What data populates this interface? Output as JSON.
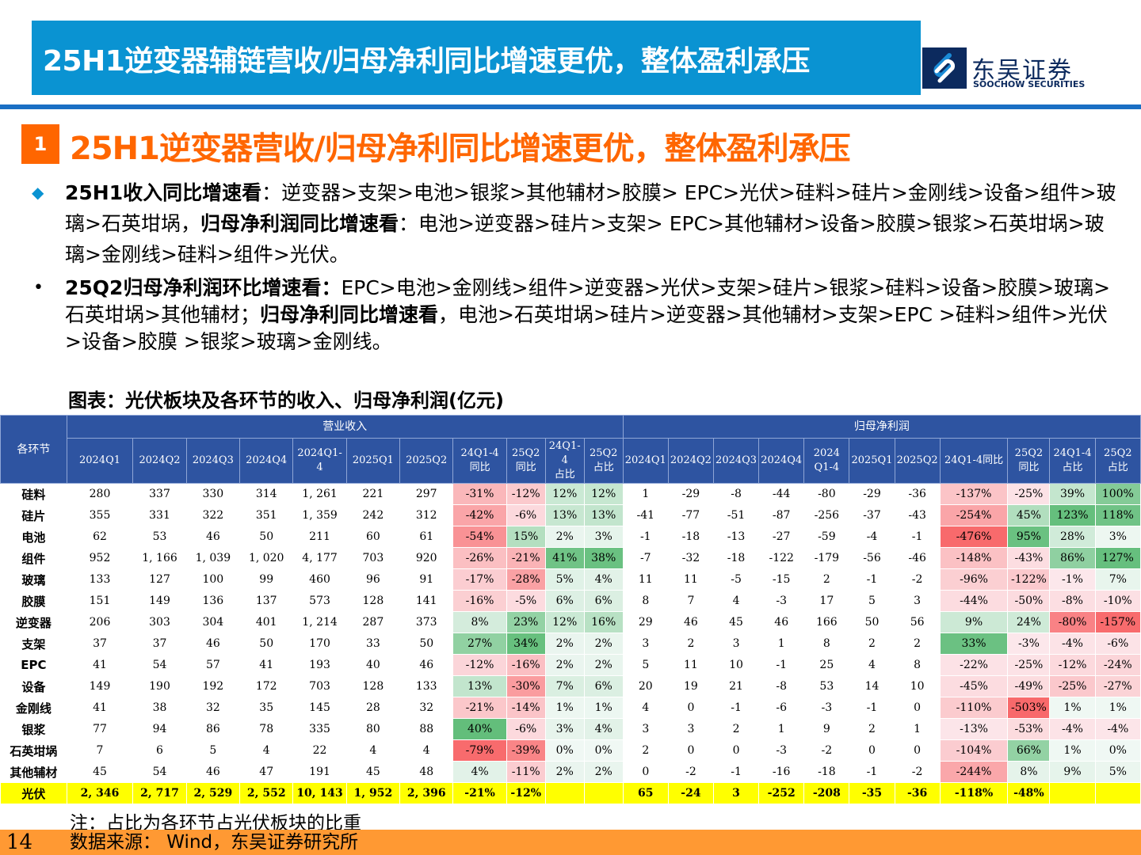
{
  "header": {
    "title": "25H1逆变器辅链营收/归母净利同比增速更优，整体盈利承压",
    "logo_cn": "东吴证券",
    "logo_en": "SOOCHOW SECURITIES",
    "logo_icon": "soochow-s-mark-icon"
  },
  "section": {
    "number": "1",
    "title": "25H1逆变器营收/归母净利同比增速更优，整体盈利承压"
  },
  "bullets": [
    {
      "marker": "◆",
      "bold1": "25H1收入同比增速看",
      "text1": "：逆变器>支架>电池>银浆>其他辅材>胶膜> EPC>光伏>硅料>硅片>金刚线>设备>组件>玻璃>石英坩埚，",
      "bold2": "归母净利润同比增速看",
      "text2": "：电池>逆变器>硅片>支架> EPC>其他辅材>设备>胶膜>银浆>石英坩埚>玻璃>金刚线>硅料>组件>光伏。"
    },
    {
      "marker": "•",
      "bold1": "25Q2归母净利润环比增速看：",
      "text1": "EPC>电池>金刚线>组件>逆变器>光伏>支架>硅片>银浆>硅料>设备>胶膜>玻璃>石英坩埚>其他辅材；",
      "bold2": "归母净利同比增速看",
      "text2": "，电池>石英坩埚>硅片>逆变器>其他辅材>支架>EPC >硅料>组件>光伏>设备>胶膜 >银浆>玻璃>金刚线。"
    }
  ],
  "chart_caption": "图表：光伏板块及各环节的收入、归母净利润(亿元)",
  "table": {
    "row_header": "各环节",
    "group_revenue": "营业收入",
    "group_profit": "归母净利润",
    "revenue_columns": [
      "2024Q1",
      "2024Q2",
      "2024Q3",
      "2024Q4",
      "2024Q1-4",
      "2025Q1",
      "2025Q2",
      "24Q1-4\n同比",
      "25Q2\n同比",
      "24Q1-4\n占比",
      "25Q2\n占比"
    ],
    "profit_columns": [
      "2024Q1",
      "2024Q2",
      "2024Q3",
      "2024Q4",
      "2024\nQ1-4",
      "2025Q1",
      "2025Q2",
      "24Q1-4同比",
      "25Q2\n同比",
      "24Q1-4\n占比",
      "25Q2\n占比"
    ],
    "rows": [
      {
        "name": "硅料",
        "rev": [
          "280",
          "337",
          "330",
          "314",
          "1, 261",
          "221",
          "297",
          "-31%",
          "-12%",
          "12%",
          "12%"
        ],
        "prof": [
          "1",
          "-29",
          "-8",
          "-44",
          "-80",
          "-29",
          "-36",
          "-137%",
          "-25%",
          "39%",
          "100%"
        ]
      },
      {
        "name": "硅片",
        "rev": [
          "355",
          "331",
          "322",
          "351",
          "1, 359",
          "242",
          "312",
          "-42%",
          "-6%",
          "13%",
          "13%"
        ],
        "prof": [
          "-41",
          "-77",
          "-51",
          "-87",
          "-256",
          "-37",
          "-43",
          "-254%",
          "45%",
          "123%",
          "118%"
        ]
      },
      {
        "name": "电池",
        "rev": [
          "62",
          "53",
          "46",
          "50",
          "211",
          "60",
          "61",
          "-54%",
          "15%",
          "2%",
          "3%"
        ],
        "prof": [
          "-1",
          "-18",
          "-13",
          "-27",
          "-59",
          "-4",
          "-1",
          "-476%",
          "95%",
          "28%",
          "3%"
        ]
      },
      {
        "name": "组件",
        "rev": [
          "952",
          "1, 166",
          "1, 039",
          "1, 020",
          "4, 177",
          "703",
          "920",
          "-26%",
          "-21%",
          "41%",
          "38%"
        ],
        "prof": [
          "-7",
          "-32",
          "-18",
          "-122",
          "-179",
          "-56",
          "-46",
          "-148%",
          "-43%",
          "86%",
          "127%"
        ]
      },
      {
        "name": "玻璃",
        "rev": [
          "133",
          "127",
          "100",
          "99",
          "460",
          "96",
          "91",
          "-17%",
          "-28%",
          "5%",
          "4%"
        ],
        "prof": [
          "11",
          "11",
          "-5",
          "-15",
          "2",
          "-1",
          "-2",
          "-96%",
          "-122%",
          "-1%",
          "7%"
        ]
      },
      {
        "name": "胶膜",
        "rev": [
          "151",
          "149",
          "136",
          "137",
          "573",
          "128",
          "141",
          "-16%",
          "-5%",
          "6%",
          "6%"
        ],
        "prof": [
          "8",
          "7",
          "4",
          "-3",
          "17",
          "5",
          "3",
          "-44%",
          "-50%",
          "-8%",
          "-10%"
        ]
      },
      {
        "name": "逆变器",
        "rev": [
          "206",
          "303",
          "304",
          "401",
          "1, 214",
          "287",
          "373",
          "8%",
          "23%",
          "12%",
          "16%"
        ],
        "prof": [
          "29",
          "46",
          "45",
          "46",
          "166",
          "50",
          "56",
          "9%",
          "24%",
          "-80%",
          "-157%"
        ]
      },
      {
        "name": "支架",
        "rev": [
          "37",
          "37",
          "46",
          "50",
          "170",
          "33",
          "50",
          "27%",
          "34%",
          "2%",
          "2%"
        ],
        "prof": [
          "3",
          "2",
          "3",
          "1",
          "8",
          "2",
          "2",
          "33%",
          "-3%",
          "-4%",
          "-6%"
        ]
      },
      {
        "name": "EPC",
        "rev": [
          "41",
          "54",
          "57",
          "41",
          "193",
          "40",
          "46",
          "-12%",
          "-16%",
          "2%",
          "2%"
        ],
        "prof": [
          "5",
          "11",
          "10",
          "-1",
          "25",
          "4",
          "8",
          "-22%",
          "-25%",
          "-12%",
          "-24%"
        ]
      },
      {
        "name": "设备",
        "rev": [
          "149",
          "190",
          "192",
          "172",
          "703",
          "128",
          "133",
          "13%",
          "-30%",
          "7%",
          "6%"
        ],
        "prof": [
          "20",
          "19",
          "21",
          "-8",
          "53",
          "14",
          "10",
          "-45%",
          "-49%",
          "-25%",
          "-27%"
        ]
      },
      {
        "name": "金刚线",
        "rev": [
          "41",
          "38",
          "32",
          "35",
          "145",
          "28",
          "32",
          "-21%",
          "-14%",
          "1%",
          "1%"
        ],
        "prof": [
          "4",
          "0",
          "-1",
          "-6",
          "-3",
          "-1",
          "0",
          "-110%",
          "-503%",
          "1%",
          "1%"
        ]
      },
      {
        "name": "银浆",
        "rev": [
          "77",
          "94",
          "86",
          "78",
          "335",
          "80",
          "88",
          "40%",
          "-6%",
          "3%",
          "4%"
        ],
        "prof": [
          "3",
          "3",
          "2",
          "1",
          "9",
          "2",
          "1",
          "-13%",
          "-53%",
          "-4%",
          "-4%"
        ]
      },
      {
        "name": "石英坩埚",
        "rev": [
          "7",
          "6",
          "5",
          "4",
          "22",
          "4",
          "4",
          "-79%",
          "-39%",
          "0%",
          "0%"
        ],
        "prof": [
          "2",
          "0",
          "0",
          "-3",
          "-2",
          "0",
          "0",
          "-104%",
          "66%",
          "1%",
          "0%"
        ]
      },
      {
        "name": "其他辅材",
        "rev": [
          "45",
          "54",
          "46",
          "47",
          "191",
          "45",
          "48",
          "4%",
          "-11%",
          "2%",
          "2%"
        ],
        "prof": [
          "0",
          "-2",
          "-1",
          "-16",
          "-18",
          "-1",
          "-2",
          "-244%",
          "8%",
          "9%",
          "5%"
        ]
      }
    ],
    "total": {
      "name": "光伏",
      "rev": [
        "2, 346",
        "2, 717",
        "2, 529",
        "2, 552",
        "10, 143",
        "1, 952",
        "2, 396",
        "-21%",
        "-12%",
        "",
        ""
      ],
      "prof": [
        "65",
        "-24",
        "3",
        "-252",
        "-208",
        "-35",
        "-36",
        "-118%",
        "-48%",
        "",
        ""
      ]
    },
    "colors": {
      "header_bg": "#2e54a1",
      "total_bg": "#ffff00",
      "neg_strong": "#f8696b",
      "pos_strong": "#63be7b",
      "neutral": "#fcfcff"
    }
  },
  "note": "注：占比为各环节占光伏板块的比重",
  "footer": {
    "page": "14",
    "source": "数据来源： Wind，东吴证券研究所"
  }
}
